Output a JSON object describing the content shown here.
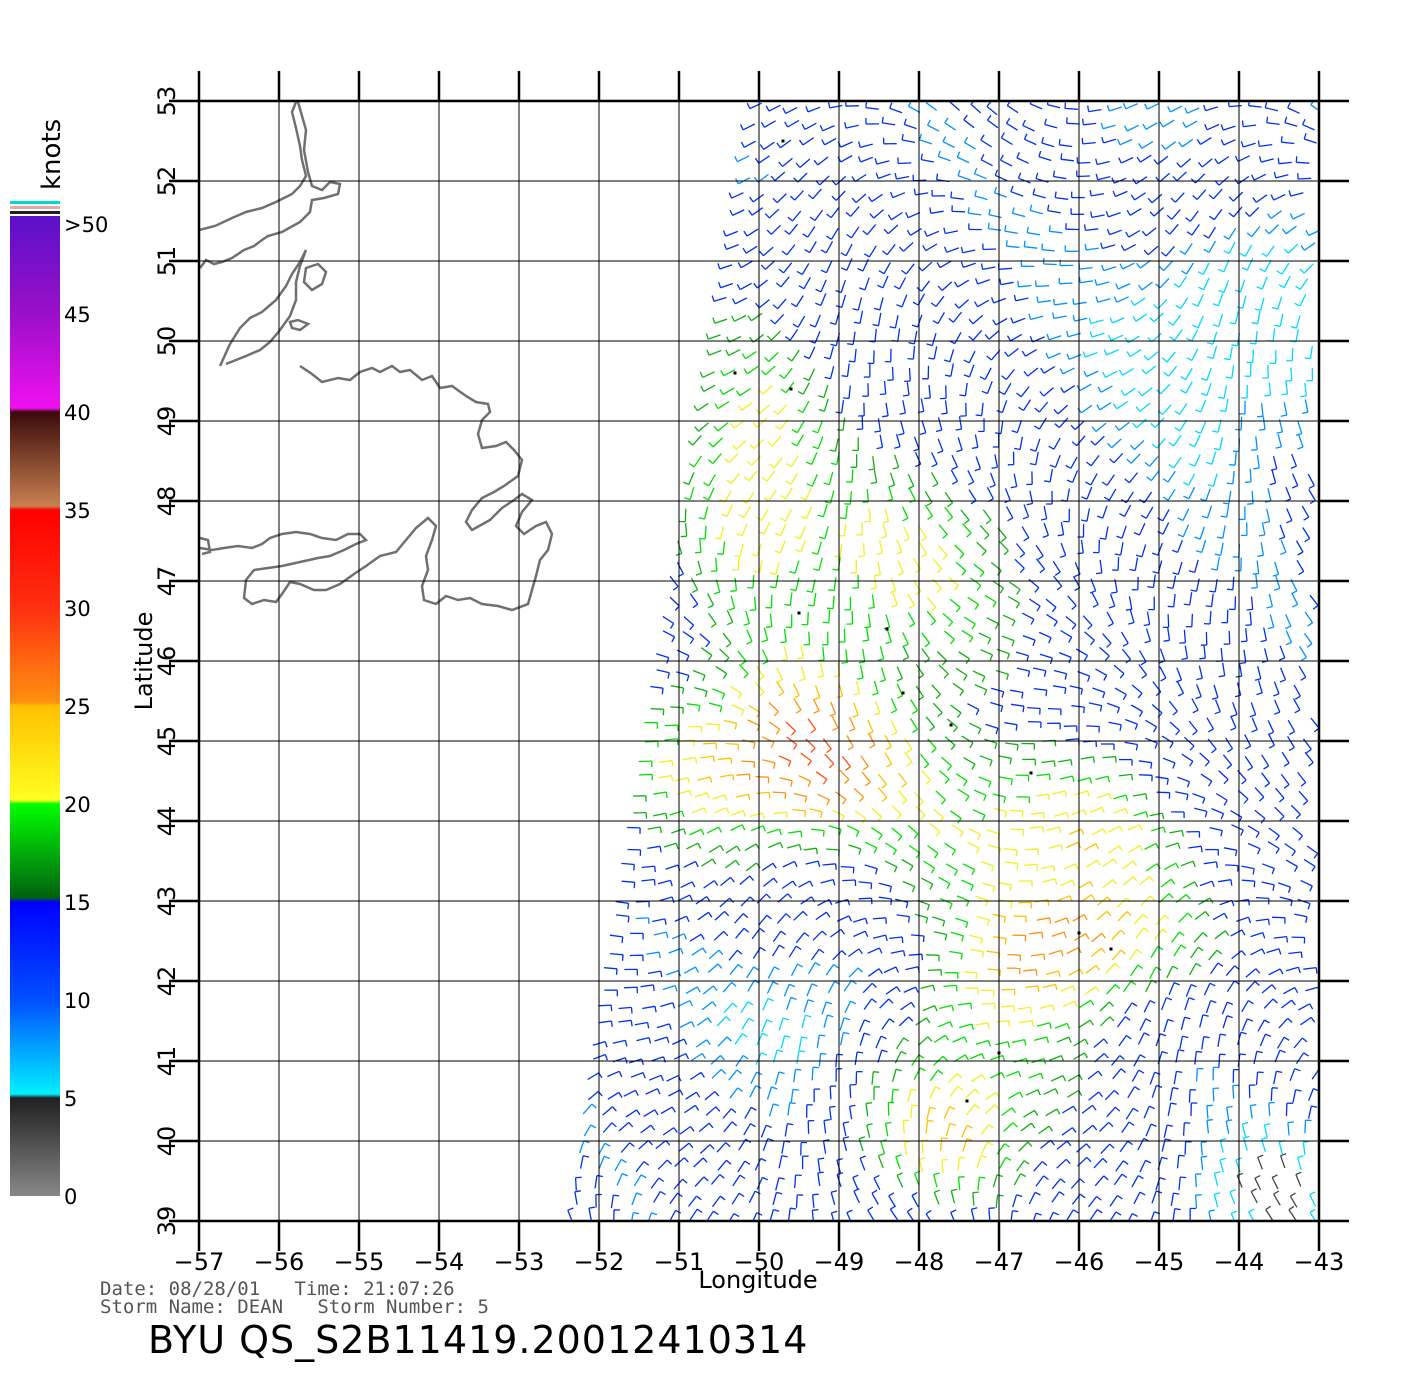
{
  "chart_data": {
    "type": "map",
    "product": "scatterometer wind vectors",
    "xlabel": "Longitude",
    "ylabel": "Latitude",
    "xlim": [
      -57,
      -43
    ],
    "ylim": [
      39,
      53
    ],
    "x_ticks": [
      "−57",
      "−56",
      "−55",
      "−54",
      "−53",
      "−52",
      "−51",
      "−50",
      "−49",
      "−48",
      "−47",
      "−46",
      "−45",
      "−44",
      "−43"
    ],
    "y_ticks": [
      "39",
      "40",
      "41",
      "42",
      "43",
      "44",
      "45",
      "46",
      "47",
      "48",
      "49",
      "50",
      "51",
      "52",
      "53"
    ],
    "grid": true,
    "swath_corners": [
      [
        -52.4,
        39
      ],
      [
        -50.1,
        53
      ],
      [
        -43,
        53
      ],
      [
        -43,
        39
      ]
    ],
    "wind_regions": [
      {
        "region": "northeast of swath",
        "speed_range_knots": [
          5,
          15
        ],
        "color": "blue/cyan"
      },
      {
        "region": "center around 46-48N",
        "speed_range_knots": [
          20,
          25
        ],
        "color": "yellow"
      },
      {
        "region": "43-46N western swath",
        "speed_range_knots": [
          25,
          35
        ],
        "color": "orange/red"
      },
      {
        "region": "around 42.5N, 46W",
        "speed_range_knots": [
          25,
          35
        ],
        "color": "orange/red"
      },
      {
        "region": "south 39-42N",
        "speed_range_knots": [
          5,
          20
        ],
        "color": "blue/green/yellow"
      }
    ],
    "flagged_points_approx": [
      [
        -49.5,
        46.6
      ],
      [
        -48.4,
        46.4
      ],
      [
        -48.2,
        45.6
      ],
      [
        -47.6,
        45.2
      ],
      [
        -46.6,
        44.6
      ],
      [
        -46.0,
        42.6
      ],
      [
        -45.6,
        42.4
      ],
      [
        -47.4,
        40.5
      ],
      [
        -47.0,
        41.1
      ],
      [
        -49.6,
        49.4
      ],
      [
        -50.3,
        49.6
      ],
      [
        -49.7,
        52.5
      ]
    ]
  },
  "legend": {
    "unit": "knots",
    "top_label": ">50",
    "ticks": [
      "45",
      "40",
      "35",
      "30",
      "25",
      "20",
      "15",
      "10",
      "5",
      "0"
    ],
    "stops": [
      {
        "value": 50,
        "color": "#5a10c8"
      },
      {
        "value": 45,
        "color": "#9a10c8"
      },
      {
        "value": 40.2,
        "color": "#f010f0"
      },
      {
        "value": 40,
        "color": "#3a0a0a"
      },
      {
        "value": 35.2,
        "color": "#c88050"
      },
      {
        "value": 35,
        "color": "#ff0000"
      },
      {
        "value": 30,
        "color": "#ff3010"
      },
      {
        "value": 25.2,
        "color": "#ff9010"
      },
      {
        "value": 25,
        "color": "#ffc000"
      },
      {
        "value": 20.2,
        "color": "#ffff20"
      },
      {
        "value": 20,
        "color": "#00ff00"
      },
      {
        "value": 15.2,
        "color": "#006010"
      },
      {
        "value": 15,
        "color": "#0000ff"
      },
      {
        "value": 10,
        "color": "#0050ff"
      },
      {
        "value": 5.2,
        "color": "#00f0ff"
      },
      {
        "value": 5,
        "color": "#202020"
      },
      {
        "value": 0,
        "color": "#888888"
      }
    ]
  },
  "footer": {
    "line1": "Date: 08/28/01   Time: 21:07:26",
    "line2": "Storm Name: DEAN   Storm Number: 5",
    "title": "BYU QS_S2B11419.20012410314"
  }
}
